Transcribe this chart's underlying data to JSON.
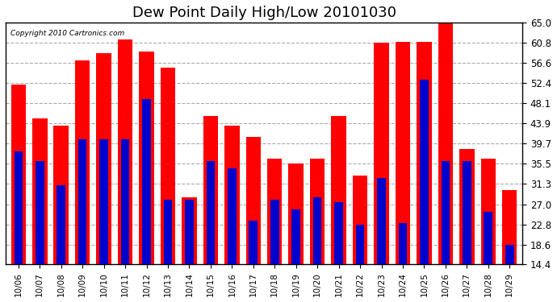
{
  "title": "Dew Point Daily High/Low 20101030",
  "copyright": "Copyright 2010 Cartronics.com",
  "dates": [
    "10/06",
    "10/07",
    "10/08",
    "10/09",
    "10/10",
    "10/11",
    "10/12",
    "10/13",
    "10/14",
    "10/15",
    "10/16",
    "10/17",
    "10/18",
    "10/19",
    "10/20",
    "10/21",
    "10/22",
    "10/23",
    "10/24",
    "10/25",
    "10/26",
    "10/27",
    "10/28",
    "10/29"
  ],
  "highs": [
    52.0,
    45.0,
    43.5,
    57.0,
    58.5,
    61.5,
    59.0,
    55.5,
    28.5,
    45.5,
    43.5,
    41.0,
    36.5,
    35.5,
    36.5,
    45.5,
    33.0,
    60.8,
    61.0,
    61.0,
    65.0,
    38.5,
    36.5,
    30.0
  ],
  "lows": [
    38.0,
    36.0,
    31.0,
    40.5,
    40.5,
    40.5,
    49.0,
    28.0,
    28.0,
    36.0,
    34.5,
    23.5,
    28.0,
    26.0,
    28.5,
    27.5,
    22.8,
    32.5,
    23.0,
    53.0,
    36.0,
    36.0,
    25.5,
    18.6
  ],
  "ylim": [
    14.4,
    65.0
  ],
  "yticks": [
    14.4,
    18.6,
    22.8,
    27.0,
    31.3,
    35.5,
    39.7,
    43.9,
    48.1,
    52.4,
    56.6,
    60.8,
    65.0
  ],
  "high_color": "#ff0000",
  "low_color": "#0000cc",
  "bg_color": "#ffffff",
  "plot_bg_color": "#ffffff",
  "grid_color": "#aaaaaa",
  "title_fontsize": 13,
  "red_bar_width": 0.7,
  "blue_bar_width": 0.4
}
